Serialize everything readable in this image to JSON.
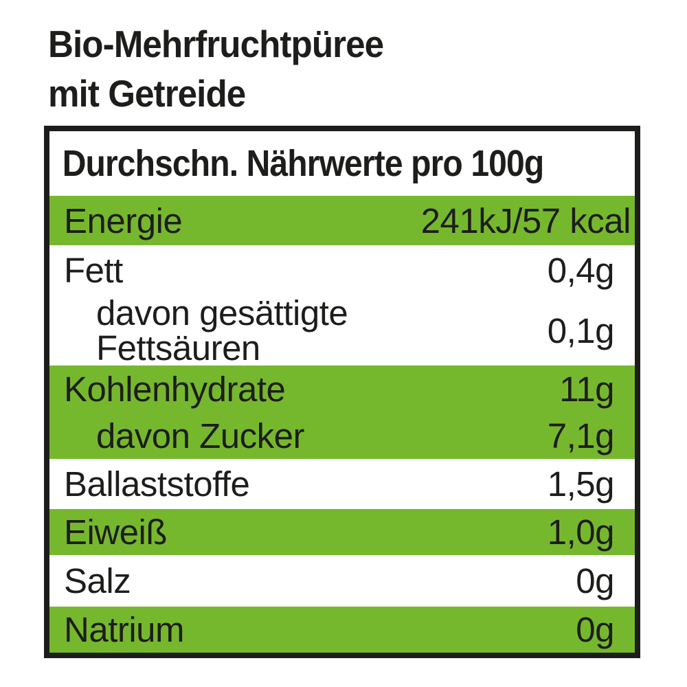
{
  "page": {
    "title_line1": "Bio-Mehrfruchtpüree",
    "title_line2": "mit Getreide"
  },
  "table": {
    "header": "Durchschn. Nährwerte pro 100g",
    "rows": [
      {
        "label": "Energie",
        "value": "241kJ/57 kcal"
      },
      {
        "label": "Fett",
        "value": "0,4g"
      },
      {
        "label": "davon gesättigte Fettsäuren",
        "label_line1": "davon gesättigte",
        "label_line2": "Fettsäuren",
        "value": "0,1g"
      },
      {
        "label": "Kohlenhydrate",
        "value": "11g"
      },
      {
        "label": "davon Zucker",
        "value": "7,1g"
      },
      {
        "label": "Ballaststoffe",
        "value": "1,5g"
      },
      {
        "label": "Eiweiß",
        "value": "1,0g"
      },
      {
        "label": "Salz",
        "value": "0g"
      },
      {
        "label": "Natrium",
        "value": "0g"
      }
    ]
  },
  "colors": {
    "row_green": "#76b82d",
    "border_black": "#1d1d1b",
    "text": "#1d1d1b"
  }
}
